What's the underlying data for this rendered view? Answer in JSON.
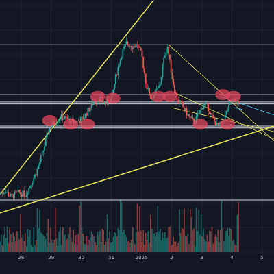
{
  "chart_data": {
    "type": "candlestick",
    "title": "",
    "xlabel": "",
    "ylabel": "",
    "x_ticks": [
      "28",
      "29",
      "30",
      "31",
      "2025",
      "2",
      "3",
      "4",
      "5"
    ],
    "x_tick_days": [
      -3.5,
      -2.5,
      -1.5,
      -0.5,
      0.5,
      1.5,
      2.5,
      3.5,
      4.5
    ],
    "x_range_days": [
      -4.2,
      4.9
    ],
    "price_range": [
      0.0,
      1.0
    ],
    "grid": true,
    "colors": {
      "background": "#131722",
      "grid": "#2a2e39",
      "up": "#26a69a",
      "down": "#ef5350",
      "trendline": "#e6e35a",
      "horizontal_line": "#d1d4dc",
      "marker": "#e0475e"
    },
    "price_path": [
      [
        -4.2,
        0.03
      ],
      [
        -4.0,
        0.05
      ],
      [
        -3.8,
        0.02
      ],
      [
        -3.55,
        0.04
      ],
      [
        -3.3,
        0.03
      ],
      [
        -3.1,
        0.1
      ],
      [
        -2.95,
        0.15
      ],
      [
        -2.75,
        0.25
      ],
      [
        -2.55,
        0.38
      ],
      [
        -2.35,
        0.42
      ],
      [
        -2.15,
        0.45
      ],
      [
        -1.95,
        0.44
      ],
      [
        -1.75,
        0.42
      ],
      [
        -1.55,
        0.43
      ],
      [
        -1.4,
        0.44
      ],
      [
        -1.25,
        0.48
      ],
      [
        -1.05,
        0.53
      ],
      [
        -0.85,
        0.55
      ],
      [
        -0.65,
        0.52
      ],
      [
        -0.45,
        0.55
      ],
      [
        -0.3,
        0.68
      ],
      [
        -0.1,
        0.8
      ],
      [
        0.05,
        0.85
      ],
      [
        0.25,
        0.83
      ],
      [
        0.4,
        0.84
      ],
      [
        0.55,
        0.78
      ],
      [
        0.7,
        0.62
      ],
      [
        0.85,
        0.55
      ],
      [
        1.0,
        0.58
      ],
      [
        1.15,
        0.62
      ],
      [
        1.3,
        0.78
      ],
      [
        1.4,
        0.83
      ],
      [
        1.55,
        0.67
      ],
      [
        1.7,
        0.55
      ],
      [
        1.85,
        0.52
      ],
      [
        2.0,
        0.48
      ],
      [
        2.15,
        0.44
      ],
      [
        2.3,
        0.42
      ],
      [
        2.45,
        0.47
      ],
      [
        2.6,
        0.52
      ],
      [
        2.75,
        0.5
      ],
      [
        2.9,
        0.44
      ],
      [
        3.05,
        0.4
      ],
      [
        3.2,
        0.41
      ],
      [
        3.35,
        0.47
      ],
      [
        3.5,
        0.52
      ],
      [
        3.65,
        0.54
      ],
      [
        3.75,
        0.52
      ]
    ],
    "trendlines": [
      {
        "from": [
          -4.2,
          0.03
        ],
        "to": [
          0.9,
          1.08
        ]
      },
      {
        "from": [
          -4.2,
          -0.07
        ],
        "to": [
          4.9,
          0.4
        ]
      },
      {
        "from": [
          1.4,
          0.84
        ],
        "to": [
          4.9,
          0.32
        ]
      },
      {
        "from": [
          1.6,
          0.58
        ],
        "to": [
          4.9,
          0.33
        ]
      },
      {
        "from": [
          1.5,
          0.5
        ],
        "to": [
          4.9,
          0.37
        ]
      },
      {
        "from": [
          3.1,
          0.56
        ],
        "to": [
          4.9,
          0.46
        ]
      },
      {
        "from": [
          3.55,
          0.5
        ],
        "to": [
          3.85,
          0.49
        ]
      }
    ],
    "horizontal_levels": [
      0.0,
      0.39,
      0.4,
      0.52,
      0.53,
      0.57,
      0.84
    ],
    "markers": [
      {
        "day": -2.55,
        "price": 0.43
      },
      {
        "day": -1.85,
        "price": 0.41
      },
      {
        "day": -1.3,
        "price": 0.41
      },
      {
        "day": -0.95,
        "price": 0.56
      },
      {
        "day": -0.45,
        "price": 0.55
      },
      {
        "day": 1.05,
        "price": 0.56
      },
      {
        "day": 1.45,
        "price": 0.56
      },
      {
        "day": 2.45,
        "price": 0.41
      },
      {
        "day": 3.2,
        "price": 0.57
      },
      {
        "day": 3.35,
        "price": 0.41
      },
      {
        "day": 3.55,
        "price": 0.56
      }
    ]
  }
}
